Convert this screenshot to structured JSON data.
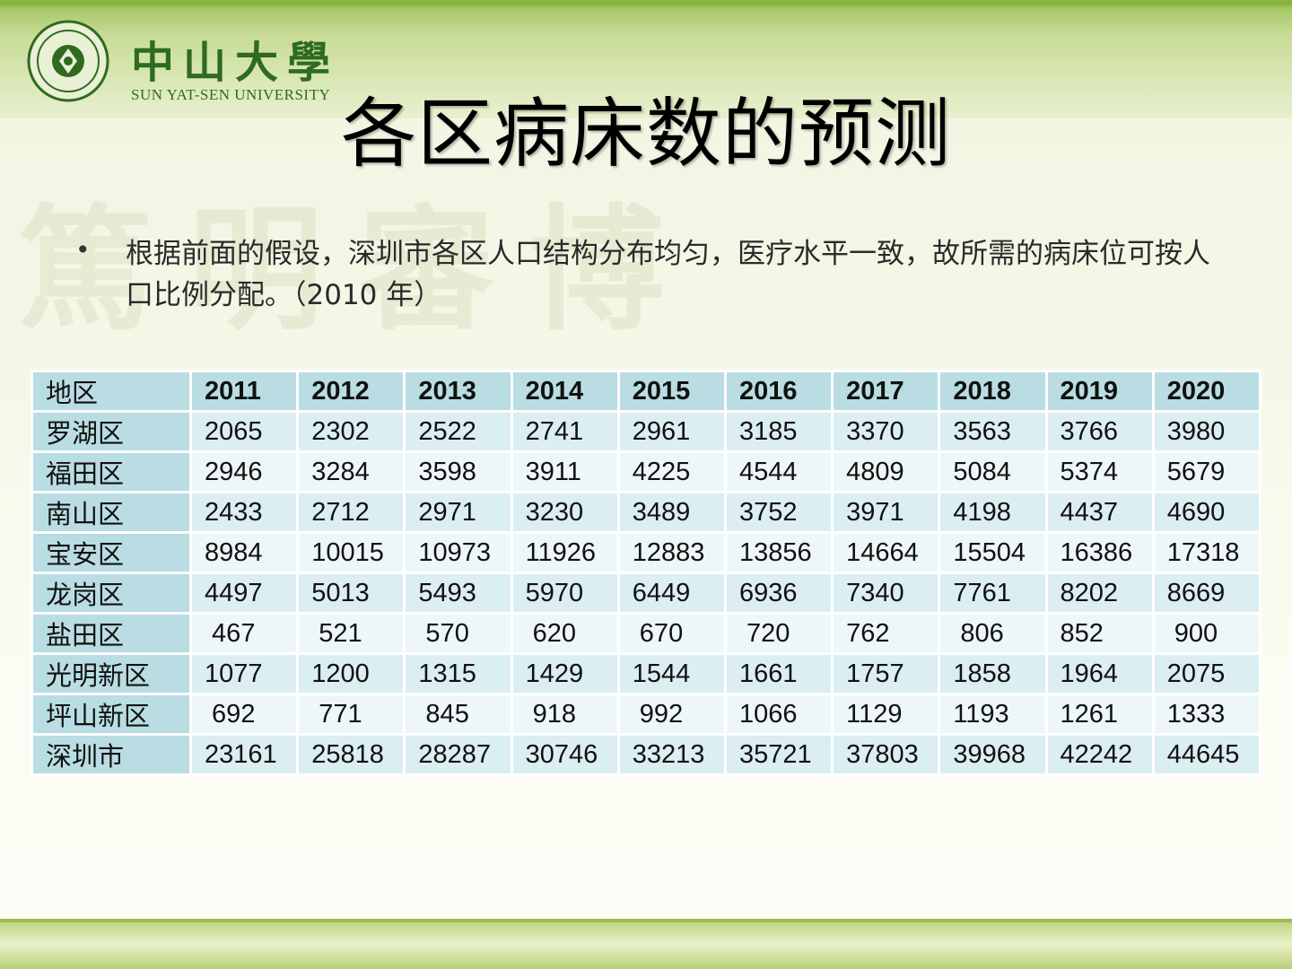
{
  "logo": {
    "name_cn": "中山大學",
    "name_en": "SUN YAT-SEN UNIVERSITY"
  },
  "slide": {
    "title": "各区病床数的预测",
    "bullet": "根据前面的假设，深圳市各区人口结构分布均匀，医疗水平一致，故所需的病床位可按人口比例分配。（2010 年）"
  },
  "table": {
    "headers": [
      "地区",
      "2011",
      "2012",
      "2013",
      "2014",
      "2015",
      "2016",
      "2017",
      "2018",
      "2019",
      "2020"
    ],
    "rows": [
      [
        "罗湖区",
        "2065",
        "2302",
        "2522",
        "2741",
        "2961",
        "3185",
        "3370",
        "3563",
        "3766",
        "3980"
      ],
      [
        "福田区",
        "2946",
        "3284",
        "3598",
        "3911",
        "4225",
        "4544",
        "4809",
        "5084",
        "5374",
        "5679"
      ],
      [
        "南山区",
        "2433",
        "2712",
        "2971",
        "3230",
        "3489",
        "3752",
        "3971",
        "4198",
        "4437",
        "4690"
      ],
      [
        "宝安区",
        "8984",
        "10015",
        "10973",
        "11926",
        "12883",
        "13856",
        "14664",
        "15504",
        "16386",
        "17318"
      ],
      [
        "龙岗区",
        "4497",
        "5013",
        "5493",
        "5970",
        "6449",
        "6936",
        "7340",
        "7761",
        "8202",
        "8669"
      ],
      [
        "盐田区",
        " 467",
        " 521",
        " 570",
        " 620",
        " 670",
        " 720",
        "762",
        " 806",
        "852",
        " 900"
      ],
      [
        "光明新区",
        "1077",
        "1200",
        "1315",
        "1429",
        "1544",
        "1661",
        "1757",
        "1858",
        "1964",
        "2075"
      ],
      [
        "坪山新区",
        " 692",
        " 771",
        " 845",
        " 918",
        " 992",
        "1066",
        "1129",
        "1193",
        "1261",
        "1333"
      ],
      [
        "深圳市",
        "23161",
        "25818",
        "28287",
        "30746",
        "33213",
        "35721",
        "37803",
        "39968",
        "42242",
        "44645"
      ]
    ]
  },
  "colors": {
    "header_bg": "#b9dde3",
    "row_odd": "#dbeef1",
    "row_even": "#edf7f8",
    "brand_green": "#2f6b1f"
  }
}
